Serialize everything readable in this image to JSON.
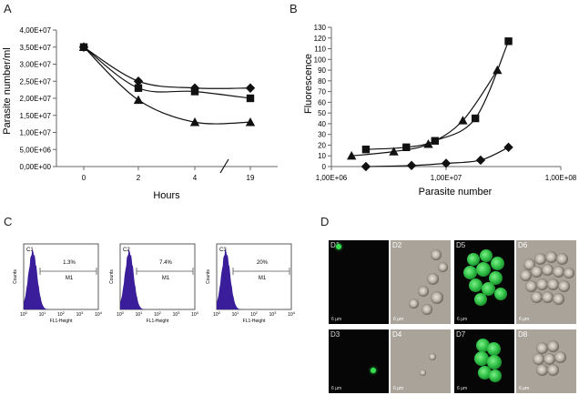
{
  "panels": {
    "a": "A",
    "b": "B",
    "c": "C",
    "d": "D"
  },
  "chart_data": [
    {
      "type": "line",
      "panel": "A",
      "ylabel": "Parasite number/ml",
      "xlabel": "Hours",
      "categories": [
        "0",
        "2",
        "4",
        "19"
      ],
      "yticks": [
        "0,00E+00",
        "5,00E+06",
        "1,00E+07",
        "1,50E+07",
        "2,00E+07",
        "2,50E+07",
        "3,00E+07",
        "3,50E+07",
        "4,00E+07"
      ],
      "ylim": [
        0,
        40000000
      ],
      "axis_break": true,
      "series": [
        {
          "name": "diamond",
          "marker": "diamond",
          "values": [
            35000000,
            25000000,
            23000000,
            23000000
          ]
        },
        {
          "name": "square",
          "marker": "square",
          "values": [
            35000000,
            23000000,
            22000000,
            20000000
          ]
        },
        {
          "name": "triangle",
          "marker": "triangle",
          "values": [
            35000000,
            19500000,
            13000000,
            13000000
          ]
        }
      ]
    },
    {
      "type": "scatter",
      "panel": "B",
      "ylabel": "Fluorescence",
      "xlabel": "Parasite number",
      "xscale": "log",
      "xticks": [
        "1,00E+06",
        "1,00E+07",
        "1,00E+08"
      ],
      "xlim": [
        1000000,
        100000000
      ],
      "ylim": [
        0,
        130
      ],
      "yticks": [
        "0",
        "10",
        "20",
        "30",
        "40",
        "50",
        "60",
        "70",
        "80",
        "90",
        "100",
        "110",
        "120",
        "130"
      ],
      "series": [
        {
          "name": "square",
          "marker": "square",
          "x": [
            2000000,
            4500000,
            8000000,
            18000000,
            35000000
          ],
          "y": [
            16,
            18,
            24,
            45,
            117
          ]
        },
        {
          "name": "triangle",
          "marker": "triangle",
          "x": [
            1500000,
            3500000,
            7000000,
            14000000,
            28000000
          ],
          "y": [
            10,
            14,
            21,
            43,
            90
          ]
        },
        {
          "name": "diamond",
          "marker": "diamond",
          "x": [
            2000000,
            5000000,
            10000000,
            20000000,
            35000000
          ],
          "y": [
            0,
            1,
            3,
            6,
            18
          ]
        }
      ]
    },
    {
      "type": "histogram",
      "panel": "C",
      "ylabel": "Counts",
      "xlabel": "FL1-Height",
      "gate": "M1",
      "x_exponents": [
        "0",
        "1",
        "2",
        "3",
        "4"
      ],
      "plots": [
        {
          "label": "C1",
          "percent": "1.3%"
        },
        {
          "label": "C2",
          "percent": "7.4%"
        },
        {
          "label": "C3",
          "percent": "20%"
        }
      ]
    }
  ],
  "micrographs": {
    "labels": [
      "D1",
      "D2",
      "D3",
      "D4",
      "D5",
      "D6",
      "D7",
      "D8"
    ],
    "scale_bar": "6 µm"
  },
  "colors": {
    "histogram_fill": "#3a1d9a",
    "fluorescence": "#35e04e"
  }
}
